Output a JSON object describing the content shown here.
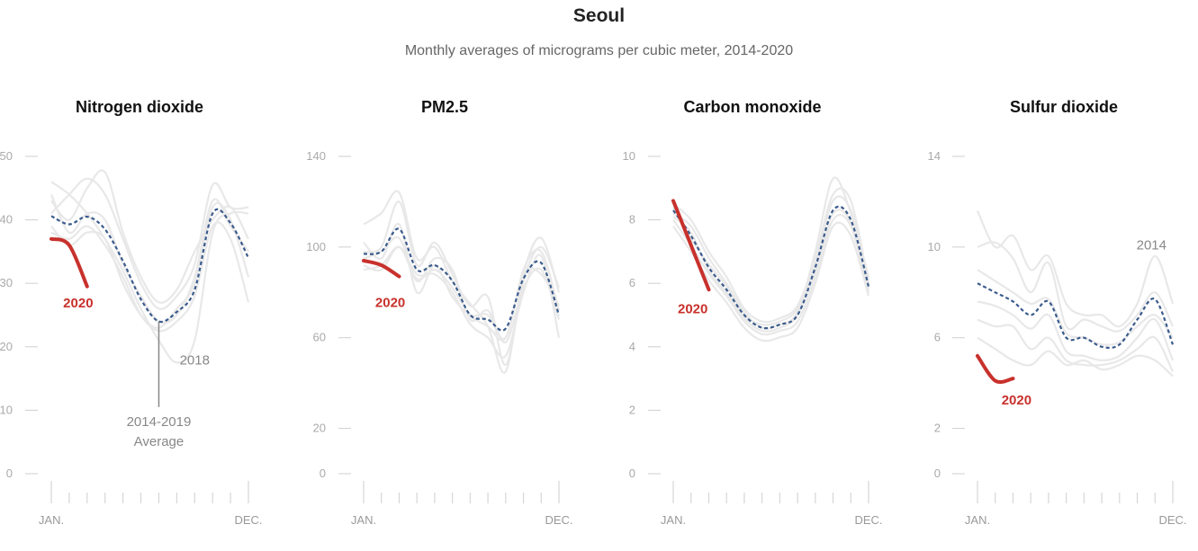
{
  "title": "Seoul",
  "subtitle": "Monthly averages of micrograms per cubic meter, 2014-2020",
  "chart_data": [
    {
      "type": "line",
      "title": "Nitrogen dioxide",
      "ylim": [
        0,
        50
      ],
      "yticks": [
        0,
        10,
        20,
        30,
        40,
        50
      ],
      "x_labels": [
        "JAN.",
        "DEC."
      ],
      "months": [
        1,
        2,
        3,
        4,
        5,
        6,
        7,
        8,
        9,
        10,
        11,
        12
      ],
      "series": [
        {
          "name": "2014-2019 Average",
          "style": "dashed",
          "color": "#3b5b8c",
          "values": [
            40.6,
            39.3,
            40.5,
            38.5,
            33.5,
            27.5,
            24.0,
            25.5,
            29.0,
            41.0,
            39.5,
            34.0
          ]
        },
        {
          "name": "2020",
          "style": "solid",
          "color": "#c8312c",
          "values": [
            37.0,
            36.0,
            29.5
          ]
        },
        {
          "name": "2018",
          "style": "bg",
          "values": [
            46,
            44,
            41,
            37,
            32,
            26,
            21,
            17.5,
            21,
            38,
            41,
            41
          ]
        },
        {
          "name": "",
          "style": "bg",
          "values": [
            41,
            44,
            46.5,
            44,
            37,
            30,
            26,
            28,
            33,
            45.5,
            42,
            42
          ]
        },
        {
          "name": "",
          "style": "bg",
          "values": [
            43,
            40,
            45,
            47.5,
            38,
            31,
            27,
            29,
            35,
            40,
            42,
            37
          ]
        },
        {
          "name": "",
          "style": "bg",
          "values": [
            38,
            37,
            39,
            36,
            31,
            25,
            22.5,
            24,
            28,
            39,
            37,
            27
          ]
        },
        {
          "name": "",
          "style": "bg",
          "values": [
            39,
            36,
            38,
            37,
            30,
            25,
            23,
            26,
            30,
            42,
            40,
            31
          ]
        },
        {
          "name": "",
          "style": "bg",
          "values": [
            44,
            38,
            41,
            40,
            33,
            28,
            24,
            25,
            31,
            43,
            39,
            35
          ]
        }
      ],
      "annotations": [
        {
          "label": "2020",
          "kind": "red",
          "x": 2.5,
          "y": 26.2
        },
        {
          "label": "2018",
          "kind": "gray",
          "x": 9.0,
          "y": 17.2
        },
        {
          "label": "2014-2019",
          "kind": "gray",
          "x": 7.0,
          "y": 7.5
        },
        {
          "label": "Average",
          "kind": "gray",
          "x": 7.0,
          "y": 4.4
        }
      ]
    },
    {
      "type": "line",
      "title": "PM2.5",
      "ylim": [
        0,
        140
      ],
      "yticks": [
        0,
        20,
        60,
        100,
        140
      ],
      "x_labels": [
        "JAN.",
        "DEC."
      ],
      "months": [
        1,
        2,
        3,
        4,
        5,
        6,
        7,
        8,
        9,
        10,
        11,
        12
      ],
      "series": [
        {
          "name": "2014-2019 Average",
          "style": "dashed",
          "color": "#3b5b8c",
          "values": [
            97,
            98,
            108,
            90,
            92,
            85,
            70,
            68,
            64,
            86,
            93,
            70
          ]
        },
        {
          "name": "2020",
          "style": "solid",
          "color": "#c8312c",
          "values": [
            94,
            92,
            87
          ]
        },
        {
          "name": "",
          "style": "bg",
          "values": [
            110,
            115,
            124,
            95,
            100,
            85,
            75,
            65,
            45,
            88,
            104,
            80
          ]
        },
        {
          "name": "",
          "style": "bg",
          "values": [
            102,
            95,
            110,
            80,
            92,
            78,
            70,
            70,
            60,
            90,
            98,
            72
          ]
        },
        {
          "name": "",
          "style": "bg",
          "values": [
            95,
            98,
            104,
            85,
            95,
            90,
            68,
            72,
            58,
            82,
            90,
            68
          ]
        },
        {
          "name": "",
          "style": "bg",
          "values": [
            90,
            92,
            100,
            88,
            88,
            80,
            66,
            60,
            52,
            80,
            96,
            60
          ]
        },
        {
          "name": "",
          "style": "bg",
          "values": [
            98,
            100,
            120,
            92,
            102,
            88,
            74,
            78,
            48,
            85,
            100,
            82
          ]
        },
        {
          "name": "",
          "style": "bg",
          "values": [
            92,
            90,
            100,
            86,
            90,
            82,
            70,
            65,
            60,
            88,
            88,
            74
          ]
        }
      ],
      "annotations": [
        {
          "label": "2020",
          "kind": "red",
          "x": 2.5,
          "y": 73.5
        }
      ]
    },
    {
      "type": "line",
      "title": "Carbon monoxide",
      "ylim": [
        0,
        10
      ],
      "yticks": [
        0,
        2,
        4,
        6,
        8,
        10
      ],
      "x_labels": [
        "JAN.",
        "DEC."
      ],
      "months": [
        1,
        2,
        3,
        4,
        5,
        6,
        7,
        8,
        9,
        10,
        11,
        12
      ],
      "series": [
        {
          "name": "2014-2019 Average",
          "style": "dashed",
          "color": "#3b5b8c",
          "values": [
            8.3,
            7.5,
            6.5,
            5.8,
            5.0,
            4.6,
            4.7,
            5.0,
            6.5,
            8.3,
            8.0,
            5.9
          ]
        },
        {
          "name": "2020",
          "style": "solid",
          "color": "#c8312c",
          "values": [
            8.6,
            7.2,
            5.8
          ]
        },
        {
          "name": "",
          "style": "bg",
          "values": [
            8.5,
            8.0,
            7.0,
            6.2,
            5.2,
            4.8,
            4.9,
            5.3,
            6.8,
            8.8,
            8.6,
            6.0
          ]
        },
        {
          "name": "",
          "style": "bg",
          "values": [
            8.0,
            7.2,
            6.3,
            5.6,
            4.8,
            4.4,
            4.5,
            4.8,
            6.2,
            8.0,
            7.8,
            5.7
          ]
        },
        {
          "name": "",
          "style": "bg",
          "values": [
            8.2,
            7.8,
            6.8,
            6.0,
            5.1,
            4.6,
            4.7,
            5.1,
            7.0,
            9.3,
            8.2,
            6.2
          ]
        },
        {
          "name": "",
          "style": "bg",
          "values": [
            7.8,
            7.0,
            6.1,
            5.4,
            4.6,
            4.2,
            4.3,
            4.6,
            6.0,
            7.8,
            7.5,
            5.6
          ]
        },
        {
          "name": "",
          "style": "bg",
          "values": [
            8.4,
            7.4,
            6.6,
            5.9,
            5.0,
            4.7,
            4.8,
            5.2,
            6.6,
            8.6,
            8.3,
            6.1
          ]
        },
        {
          "name": "",
          "style": "bg",
          "values": [
            8.1,
            7.6,
            6.4,
            5.7,
            4.9,
            4.5,
            4.6,
            5.0,
            6.4,
            8.2,
            7.9,
            5.8
          ]
        }
      ],
      "annotations": [
        {
          "label": "2020",
          "kind": "red",
          "x": 2.1,
          "y": 5.05
        }
      ]
    },
    {
      "type": "line",
      "title": "Sulfur dioxide",
      "ylim": [
        0,
        14
      ],
      "yticks": [
        0,
        2,
        6,
        10,
        14
      ],
      "x_labels": [
        "JAN.",
        "DEC."
      ],
      "months": [
        1,
        2,
        3,
        4,
        5,
        6,
        7,
        8,
        9,
        10,
        11,
        12
      ],
      "series": [
        {
          "name": "2014-2019 Average",
          "style": "dashed",
          "color": "#3b5b8c",
          "values": [
            8.4,
            8.0,
            7.6,
            7.0,
            7.6,
            6.0,
            6.0,
            5.6,
            5.7,
            6.8,
            7.7,
            5.7
          ]
        },
        {
          "name": "2020",
          "style": "solid",
          "color": "#c8312c",
          "values": [
            5.2,
            4.1,
            4.2
          ]
        },
        {
          "name": "2014",
          "style": "bg",
          "values": [
            11.6,
            10.0,
            10.5,
            9.0,
            9.6,
            7.5,
            7.0,
            7.0,
            6.5,
            7.5,
            9.6,
            7.5
          ]
        },
        {
          "name": "",
          "style": "bg",
          "values": [
            10.0,
            10.2,
            9.5,
            8.0,
            9.3,
            6.5,
            6.8,
            6.5,
            6.3,
            7.0,
            8.0,
            6.5
          ]
        },
        {
          "name": "",
          "style": "bg",
          "values": [
            9.0,
            8.5,
            8.0,
            7.5,
            7.7,
            6.2,
            6.0,
            5.7,
            5.8,
            6.5,
            7.0,
            6.0
          ]
        },
        {
          "name": "",
          "style": "bg",
          "values": [
            7.6,
            7.4,
            7.0,
            6.4,
            7.0,
            5.4,
            5.2,
            5.0,
            5.2,
            6.0,
            6.8,
            5.0
          ]
        },
        {
          "name": "",
          "style": "bg",
          "values": [
            6.8,
            6.5,
            6.5,
            5.5,
            6.0,
            5.0,
            4.8,
            4.8,
            5.0,
            5.5,
            6.0,
            4.5
          ]
        },
        {
          "name": "",
          "style": "bg",
          "values": [
            6.0,
            5.5,
            5.0,
            4.8,
            5.4,
            4.8,
            5.0,
            4.6,
            4.8,
            5.2,
            5.0,
            4.3
          ]
        }
      ],
      "annotations": [
        {
          "label": "2020",
          "kind": "red",
          "x": 3.2,
          "y": 3.05
        },
        {
          "label": "2014",
          "kind": "gray",
          "x": 10.8,
          "y": 9.9
        }
      ]
    }
  ]
}
